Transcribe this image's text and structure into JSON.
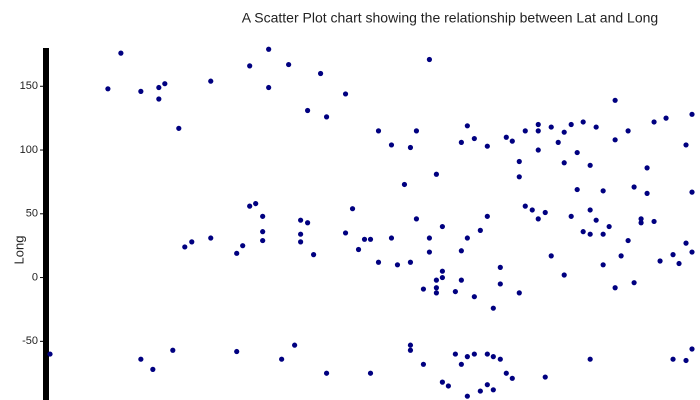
{
  "chart_data": {
    "type": "scatter",
    "title": "A Scatter Plot chart showing the relationship between Lat and Long",
    "y_label": "Long",
    "color": "#000080",
    "xlim": [
      -50,
      81
    ],
    "ylim": [
      -96,
      180
    ],
    "yticks": [
      -50,
      0,
      50,
      100,
      150
    ],
    "grid": false,
    "x": [
      -49.2,
      -37.6,
      -35,
      -31,
      -27.4,
      -26.2,
      -27.4,
      -23.4,
      -31,
      -28.6,
      -24.6,
      -22.2,
      -20.8,
      -17,
      -17,
      -11.8,
      -10.6,
      -11.8,
      -9.2,
      -9.2,
      -8,
      -6.6,
      -6.6,
      -6.6,
      -5.4,
      -5.4,
      -2.8,
      -1.4,
      -0.2,
      1,
      1,
      1,
      2.4,
      2.4,
      3.6,
      5,
      6.2,
      6.2,
      10,
      10,
      11.4,
      12.6,
      13.8,
      15,
      15,
      16.6,
      16.6,
      19.2,
      19.2,
      20.4,
      21.8,
      23,
      23,
      23,
      23,
      24.2,
      24.2,
      25.6,
      25.6,
      26.8,
      26.8,
      26.8,
      28.2,
      28.2,
      28.2,
      28.2,
      29.4,
      29.4,
      29.4,
      29.4,
      30.6,
      32,
      32,
      33.2,
      33.2,
      33.2,
      33.2,
      34.4,
      34.4,
      34.4,
      34.4,
      35.8,
      35.8,
      35.8,
      37,
      37,
      38.4,
      38.4,
      38.4,
      38.4,
      39.6,
      39.6,
      39.6,
      41,
      41,
      41,
      42.2,
      42.2,
      43.4,
      43.4,
      44.8,
      44.8,
      44.8,
      46,
      46,
      47.4,
      48.6,
      48.6,
      48.6,
      48.6,
      50,
      50,
      51.2,
      51.2,
      52.6,
      53.8,
      53.8,
      53.8,
      55.2,
      55.2,
      56.4,
      56.4,
      57.6,
      57.6,
      59,
      59,
      59,
      59,
      60.2,
      60.2,
      61.6,
      61.6,
      61.6,
      62.8,
      64,
      64,
      64,
      65.2,
      66.6,
      66.6,
      67.8,
      67.8,
      69.2,
      69.2,
      70.4,
      70.4,
      71.8,
      71.8,
      73,
      74.2,
      75.6,
      76.8,
      78.2,
      78.2,
      79.4,
      79.4,
      79.4,
      78.2,
      79.4,
      75.6
    ],
    "values": [
      -60,
      148,
      176,
      146,
      149,
      152,
      140,
      117,
      -64,
      -72,
      -57,
      24,
      28,
      154,
      31,
      19,
      25,
      -58,
      166,
      56,
      58,
      48,
      36,
      29,
      179,
      149,
      -64,
      167,
      -53,
      45,
      34,
      28,
      43,
      131,
      18,
      160,
      126,
      -75,
      144,
      35,
      54,
      22,
      30,
      30,
      -75,
      12,
      115,
      104,
      31,
      10,
      73,
      102,
      12,
      -53,
      -57,
      115,
      46,
      -9,
      -68,
      171,
      31,
      20,
      81,
      -8,
      -2,
      -12,
      5,
      0,
      40,
      -82,
      -85,
      -11,
      -60,
      21,
      106,
      -68,
      -2,
      119,
      -62,
      31,
      -93,
      109,
      -60,
      -15,
      37,
      -89,
      103,
      48,
      -60,
      -84,
      -24,
      -62,
      -88,
      -64,
      8,
      -5,
      110,
      -75,
      107,
      -79,
      79,
      -12,
      91,
      115,
      56,
      53,
      100,
      120,
      115,
      46,
      51,
      -78,
      17,
      118,
      106,
      90,
      114,
      2,
      120,
      48,
      69,
      98,
      122,
      36,
      88,
      53,
      34,
      -64,
      118,
      45,
      10,
      68,
      34,
      40,
      139,
      108,
      -8,
      17,
      115,
      29,
      -4,
      71,
      43,
      46,
      86,
      66,
      44,
      122,
      13,
      125,
      18,
      11,
      104,
      27,
      67,
      20,
      128,
      -65,
      -56,
      -64
    ]
  }
}
